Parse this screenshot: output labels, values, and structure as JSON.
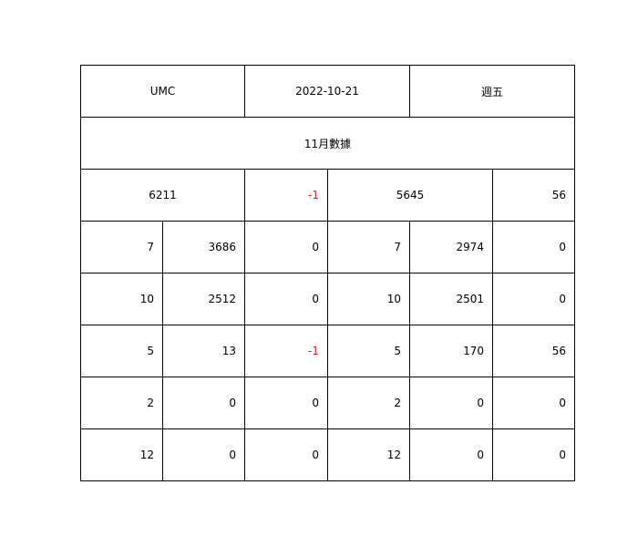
{
  "header": {
    "company": "UMC",
    "date": "2022-10-21",
    "weekday": "週五"
  },
  "section_title": "11月數據",
  "summary": {
    "left_total": "6211",
    "left_change": "-1",
    "right_total": "5645",
    "right_change": "56"
  },
  "rows": [
    {
      "a": "7",
      "b": "3686",
      "c": "0",
      "d": "7",
      "e": "2974",
      "f": "0"
    },
    {
      "a": "10",
      "b": "2512",
      "c": "0",
      "d": "10",
      "e": "2501",
      "f": "0"
    },
    {
      "a": "5",
      "b": "13",
      "c": "-1",
      "d": "5",
      "e": "170",
      "f": "56"
    },
    {
      "a": "2",
      "b": "0",
      "c": "0",
      "d": "2",
      "e": "0",
      "f": "0"
    },
    {
      "a": "12",
      "b": "0",
      "c": "0",
      "d": "12",
      "e": "0",
      "f": "0"
    }
  ],
  "colors": {
    "negative": "#e0281f",
    "border": "#000000"
  }
}
